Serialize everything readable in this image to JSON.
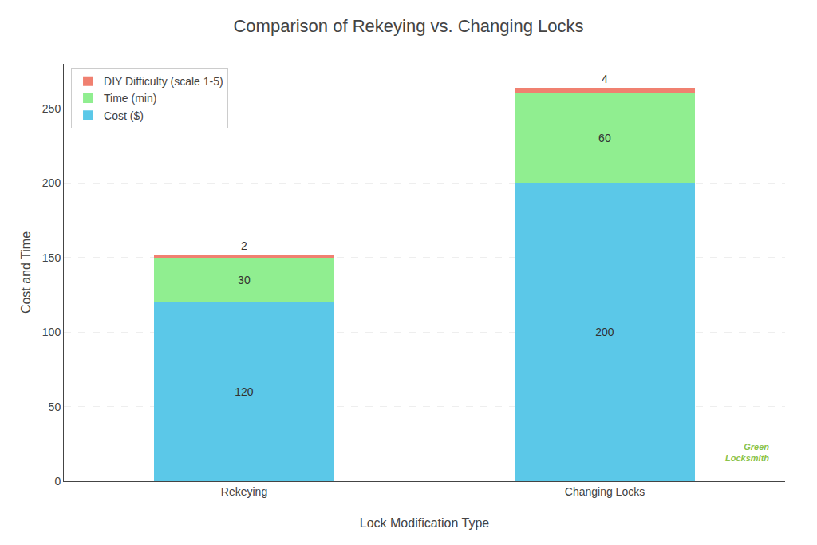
{
  "chart_data": {
    "type": "bar",
    "title": "Comparison of Rekeying vs. Changing Locks",
    "xlabel": "Lock Modification Type",
    "ylabel": "Cost and Time",
    "categories": [
      "Rekeying",
      "Changing Locks"
    ],
    "series": [
      {
        "name": "Cost ($)",
        "color": "#5BC8E8",
        "values": [
          120,
          200
        ]
      },
      {
        "name": "Time (min)",
        "color": "#90EE90",
        "values": [
          30,
          60
        ]
      },
      {
        "name": "DIY Difficulty (scale 1-5)",
        "color": "#F08070",
        "values": [
          2,
          4
        ]
      }
    ],
    "stacked": true,
    "data_labels": true,
    "ylim": [
      0,
      280
    ],
    "yticks": [
      0,
      50,
      100,
      150,
      200,
      250
    ],
    "grid": true,
    "legend": "upper left",
    "annotations": [
      {
        "text": "Green\nLocksmith",
        "color": "#8BC34A"
      }
    ]
  }
}
